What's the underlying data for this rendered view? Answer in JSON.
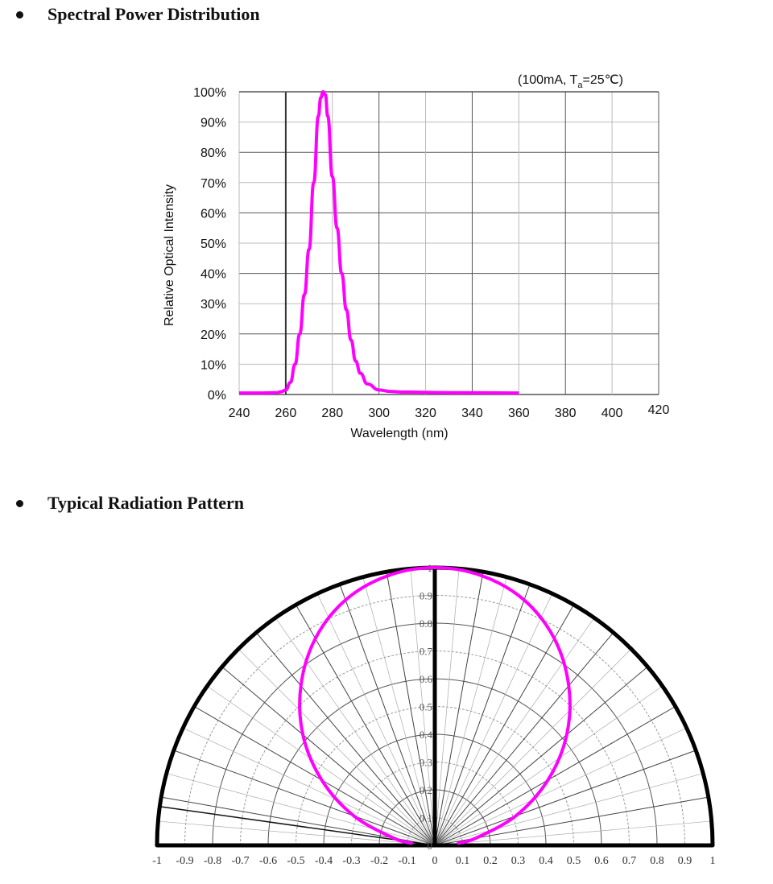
{
  "sections": [
    {
      "title": "Spectral Power Distribution"
    },
    {
      "title": "Typical Radiation Pattern"
    }
  ],
  "chart_data": [
    {
      "type": "line",
      "annotation": "(100mA, T",
      "annotation_sub": "a",
      "annotation_end": "=25℃)",
      "xlabel": "Wavelength (nm)",
      "ylabel": "Relative Optical Intensity",
      "xlim": [
        240,
        420
      ],
      "ylim": [
        0,
        100
      ],
      "x_ticks": [
        "240",
        "260",
        "280",
        "300",
        "320",
        "340",
        "360",
        "380",
        "400",
        "420"
      ],
      "y_ticks": [
        "0%",
        "10%",
        "20%",
        "30%",
        "40%",
        "50%",
        "60%",
        "70%",
        "80%",
        "90%",
        "100%"
      ],
      "grid": true,
      "color": "#ff00ff",
      "x": [
        240,
        250,
        256,
        258,
        260,
        262,
        264,
        266,
        268,
        270,
        272,
        274,
        275,
        276,
        277,
        278,
        280,
        282,
        284,
        286,
        288,
        290,
        292,
        295,
        300,
        305,
        310,
        330,
        360
      ],
      "y": [
        0.5,
        0.5,
        0.6,
        0.9,
        1.5,
        4,
        10,
        20,
        33,
        48,
        70,
        92,
        98,
        100,
        99,
        92,
        72,
        55,
        40,
        28,
        18,
        11,
        7,
        3.5,
        1.5,
        1,
        0.8,
        0.6,
        0.5
      ]
    },
    {
      "type": "polar",
      "r_ticks": [
        "0",
        "0.1",
        "0.2",
        "0.3",
        "0.4",
        "0.5",
        "0.6",
        "0.7",
        "0.8",
        "0.9",
        "1"
      ],
      "x_ticks": [
        "-1",
        "-0.9",
        "-0.8",
        "-0.7",
        "-0.6",
        "-0.5",
        "-0.4",
        "-0.3",
        "-0.2",
        "-0.1",
        "0",
        "0.1",
        "0.2",
        "0.3",
        "0.4",
        "0.5",
        "0.6",
        "0.7",
        "0.8",
        "0.9",
        "1"
      ],
      "rlim": [
        0,
        1
      ],
      "color": "#ff00ff",
      "angles_deg": [
        -85,
        -80,
        -70,
        -60,
        -50,
        -40,
        -30,
        -20,
        -10,
        0,
        10,
        20,
        30,
        40,
        50,
        60,
        70,
        80,
        85
      ],
      "intensity": [
        0.08,
        0.15,
        0.31,
        0.47,
        0.62,
        0.75,
        0.86,
        0.94,
        0.985,
        1,
        0.985,
        0.94,
        0.86,
        0.75,
        0.62,
        0.47,
        0.31,
        0.15,
        0.08
      ]
    }
  ]
}
